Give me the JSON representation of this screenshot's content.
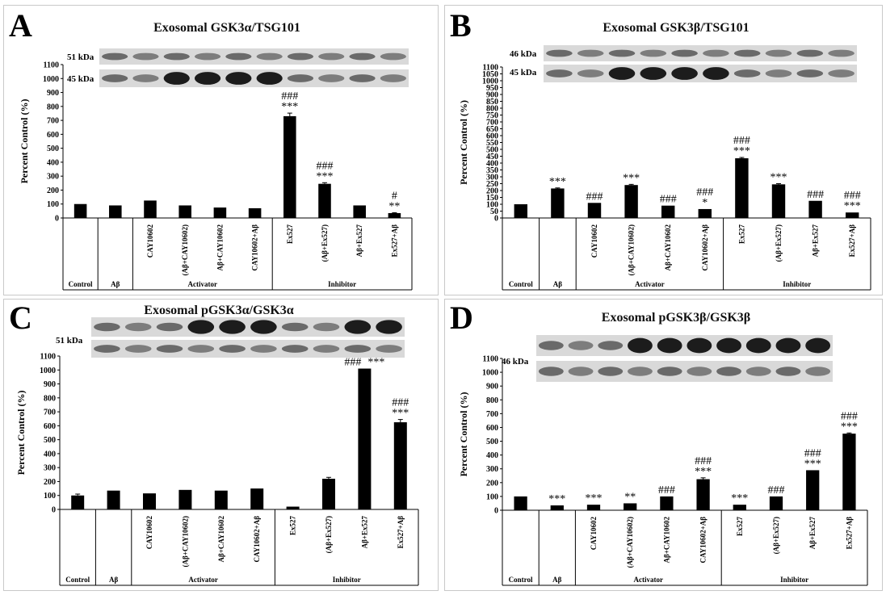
{
  "chart_data": [
    {
      "type": "bar",
      "panel_letter": "A",
      "title": "Exosomal GSK3α/TSG101",
      "ylabel": "Percent Control (%)",
      "ylim": [
        0,
        1100
      ],
      "yticks": [
        "0",
        "100",
        "200",
        "300",
        "400",
        "500",
        "600",
        "700",
        "800",
        "900",
        "1000",
        "1100"
      ],
      "categories": [
        "Control",
        "Aβ",
        "CAY10602",
        "(Aβ+CAY10602)",
        "Aβ+CAY10602",
        "CAY10602+Aβ",
        "Ex527",
        "(Aβ+Ex527)",
        "Aβ+Ex527",
        "Ex527+Aβ"
      ],
      "values": [
        100,
        90,
        125,
        90,
        75,
        70,
        730,
        245,
        90,
        35
      ],
      "errors": [
        0,
        0,
        0,
        0,
        0,
        0,
        22,
        8,
        0,
        3
      ],
      "significance": [
        "",
        "",
        "",
        "",
        "",
        "",
        "###\n***",
        "###\n***",
        "",
        "#\n**"
      ],
      "groups": [
        "Activator",
        "Inhibitor"
      ],
      "blot_labels": [
        "51 kDa",
        "45 kDa"
      ]
    },
    {
      "type": "bar",
      "panel_letter": "B",
      "title": "Exosomal GSK3β/TSG101",
      "ylabel": "Percent Control (%)",
      "ylim": [
        0,
        1100
      ],
      "yticks": [
        "0",
        "50",
        "100",
        "150",
        "200",
        "250",
        "300",
        "350",
        "400",
        "450",
        "500",
        "550",
        "600",
        "650",
        "700",
        "750",
        "800",
        "850",
        "900",
        "950",
        "1000",
        "1050",
        "1100"
      ],
      "categories": [
        "Control",
        "Aβ",
        "CAY10602",
        "(Aβ+CAY10602)",
        "Aβ+CAY10602",
        "CAY10602+Aβ",
        "Ex527",
        "(Aβ+Ex527)",
        "Aβ+Ex527",
        "Ex527+Aβ"
      ],
      "values": [
        100,
        215,
        110,
        240,
        90,
        65,
        435,
        245,
        125,
        40
      ],
      "errors": [
        0,
        4,
        0,
        5,
        0,
        0,
        6,
        5,
        0,
        0
      ],
      "significance": [
        "",
        "***",
        "###",
        "***",
        "###",
        "###\n*",
        "###\n***",
        "***",
        "###",
        "###\n***"
      ],
      "groups": [
        "Activator",
        "Inhibitor"
      ],
      "blot_labels": [
        "46 kDa",
        "45 kDa"
      ]
    },
    {
      "type": "bar",
      "panel_letter": "C",
      "title": "Exosomal pGSK3α/GSK3α",
      "ylabel": "Percent Control (%)",
      "ylim": [
        0,
        1100
      ],
      "yticks": [
        "0",
        "100",
        "200",
        "300",
        "400",
        "500",
        "600",
        "700",
        "800",
        "900",
        "1000",
        "1100"
      ],
      "categories": [
        "Control",
        "Aβ",
        "CAY10602",
        "(Aβ+CAY10602)",
        "Aβ+CAY10602",
        "CAY10602+Aβ",
        "Ex527",
        "(Aβ+Ex527)",
        "Aβ+Ex527",
        "Ex527+Aβ"
      ],
      "values": [
        100,
        135,
        115,
        140,
        135,
        150,
        20,
        220,
        1010,
        625
      ],
      "errors": [
        10,
        0,
        0,
        0,
        0,
        0,
        0,
        10,
        0,
        20
      ],
      "significance": [
        "",
        "",
        "",
        "",
        "",
        "",
        "",
        "",
        "###,***",
        "###\n***"
      ],
      "groups": [
        "Activator",
        "Inhibitor"
      ],
      "blot_labels": [
        "51 kDa"
      ]
    },
    {
      "type": "bar",
      "panel_letter": "D",
      "title": "Exosomal pGSK3β/GSK3β",
      "ylabel": "Percent Control (%)",
      "ylim": [
        0,
        1100
      ],
      "yticks": [
        "0",
        "100",
        "200",
        "300",
        "400",
        "500",
        "600",
        "700",
        "800",
        "900",
        "1000",
        "1100"
      ],
      "categories": [
        "Control",
        "Aβ",
        "CAY10602",
        "(Aβ+CAY10602)",
        "Aβ+CAY10602",
        "CAY10602+Aβ",
        "Ex527",
        "(Aβ+Ex527)",
        "Aβ+Ex527",
        "Ex527+Aβ"
      ],
      "values": [
        100,
        35,
        40,
        50,
        100,
        225,
        40,
        100,
        290,
        555
      ],
      "errors": [
        0,
        0,
        0,
        0,
        0,
        10,
        0,
        0,
        0,
        5
      ],
      "significance": [
        "",
        "***",
        "***",
        "**",
        "###",
        "###\n***",
        "***",
        "###",
        "###\n***",
        "###\n***"
      ],
      "groups": [
        "Activator",
        "Inhibitor"
      ],
      "blot_labels": [
        "46 kDa"
      ]
    }
  ]
}
